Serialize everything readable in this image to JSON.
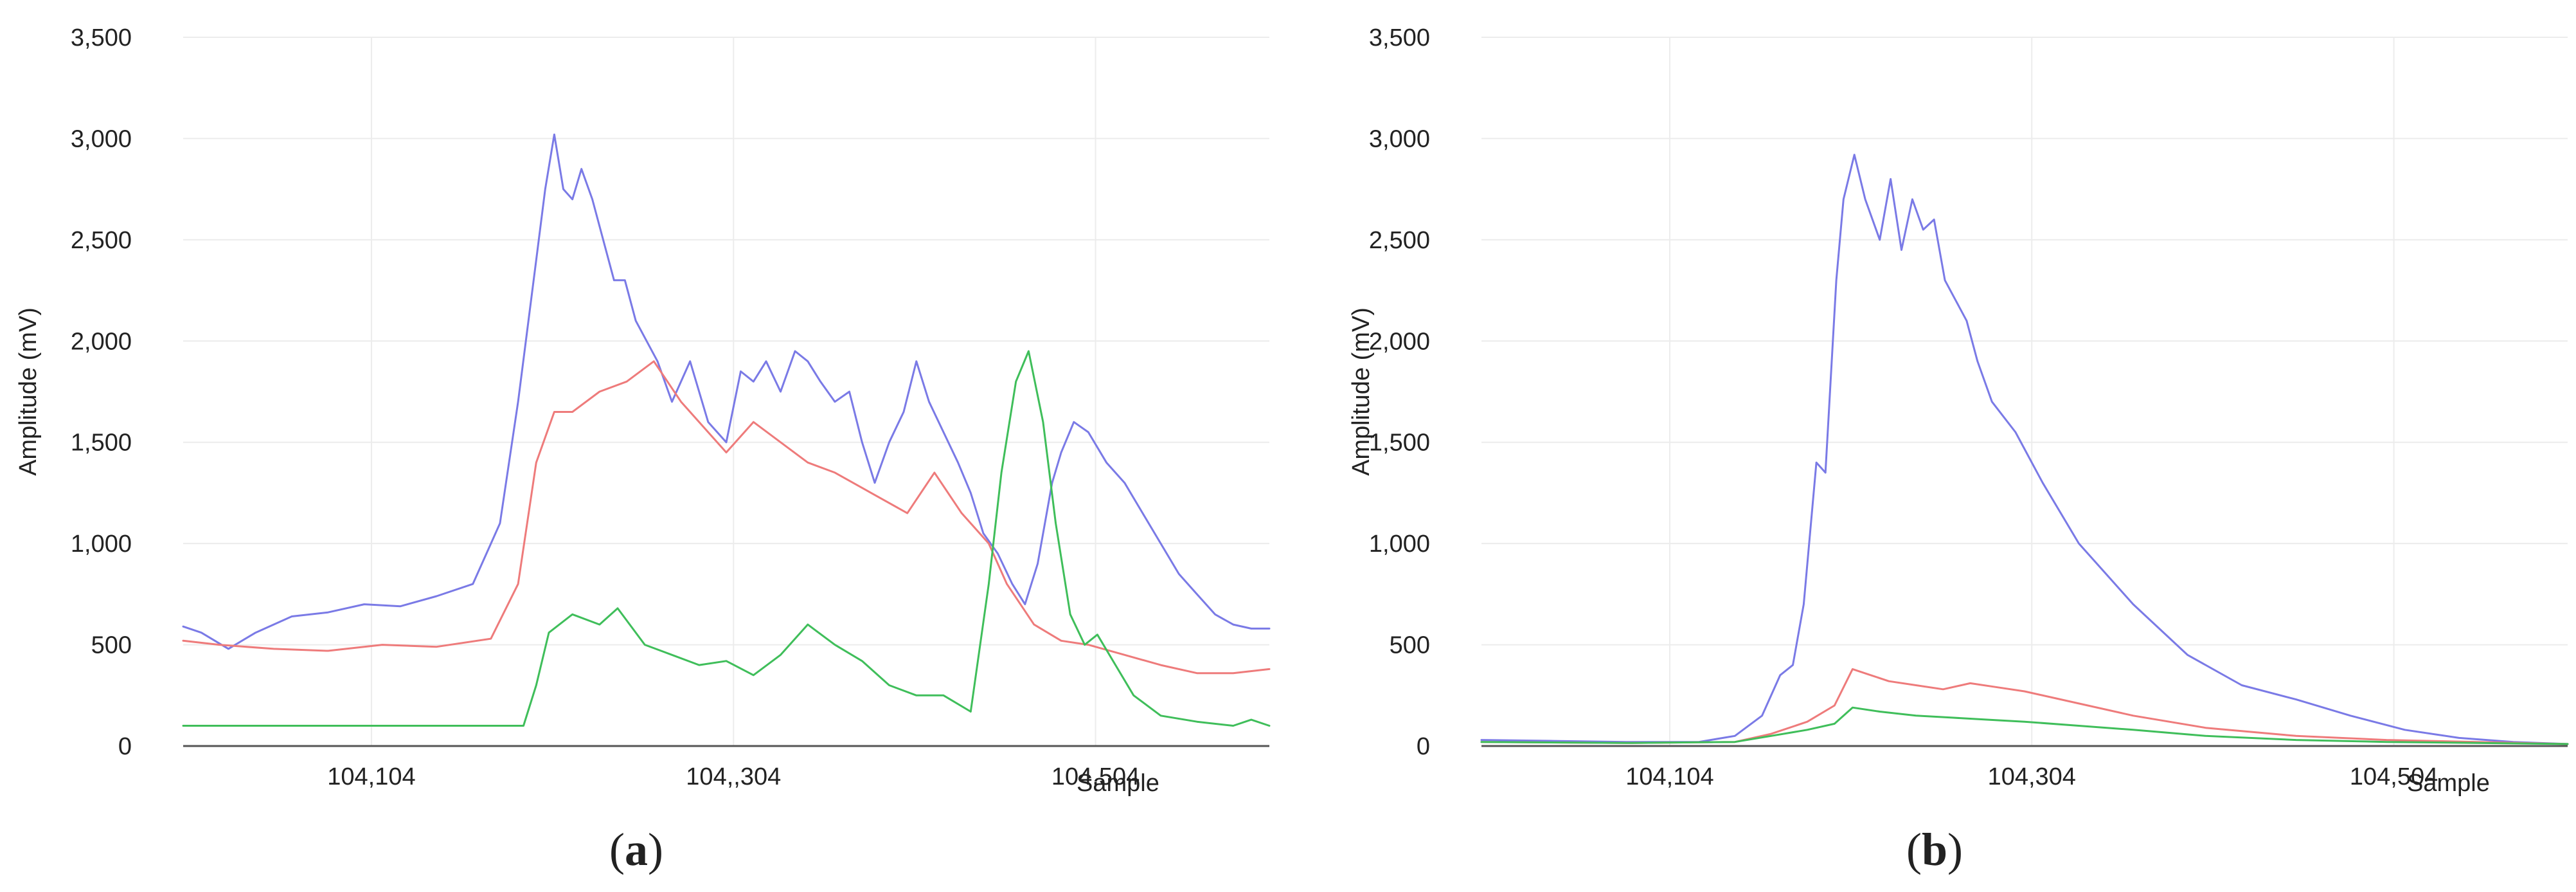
{
  "chart_data": [
    {
      "type": "line",
      "panel_label": "a",
      "ylabel": "Amplitude (mV)",
      "xlabel": "Sample",
      "ylim": [
        0,
        3500
      ],
      "yticks": [
        0,
        500,
        1000,
        1500,
        2000,
        2500,
        3000,
        3500
      ],
      "ytick_labels": [
        "0",
        "500",
        "1,000",
        "1,500",
        "2,000",
        "2,500",
        "3,000",
        "3,500"
      ],
      "xlim": [
        104000,
        104600
      ],
      "xticks": [
        104104,
        104304,
        104504
      ],
      "xtick_labels": [
        "104,104",
        "104,,304",
        "104,504"
      ],
      "grid": true,
      "series": [
        {
          "color": "#7a7ae6",
          "x": [
            104000,
            104010,
            104025,
            104040,
            104060,
            104080,
            104100,
            104120,
            104140,
            104160,
            104175,
            104185,
            104190,
            104195,
            104200,
            104205,
            104210,
            104215,
            104220,
            104226,
            104232,
            104238,
            104244,
            104250,
            104256,
            104262,
            104270,
            104280,
            104290,
            104300,
            104308,
            104315,
            104322,
            104330,
            104338,
            104345,
            104352,
            104360,
            104368,
            104375,
            104382,
            104390,
            104398,
            104405,
            104412,
            104420,
            104428,
            104435,
            104442,
            104450,
            104458,
            104465,
            104472,
            104480,
            104485,
            104492,
            104500,
            104510,
            104520,
            104530,
            104540,
            104550,
            104560,
            104570,
            104580,
            104590,
            104600
          ],
          "y": [
            590,
            560,
            480,
            560,
            640,
            660,
            700,
            690,
            740,
            800,
            1100,
            1700,
            2050,
            2400,
            2750,
            3020,
            2750,
            2700,
            2850,
            2700,
            2500,
            2300,
            2300,
            2100,
            2000,
            1900,
            1700,
            1900,
            1600,
            1500,
            1850,
            1800,
            1900,
            1750,
            1950,
            1900,
            1800,
            1700,
            1750,
            1500,
            1300,
            1500,
            1650,
            1900,
            1700,
            1550,
            1400,
            1250,
            1050,
            950,
            800,
            700,
            900,
            1300,
            1450,
            1600,
            1550,
            1400,
            1300,
            1150,
            1000,
            850,
            750,
            650,
            600,
            580,
            580
          ]
        },
        {
          "color": "#ee7b7b",
          "x": [
            104000,
            104020,
            104050,
            104080,
            104110,
            104140,
            104170,
            104185,
            104195,
            104205,
            104215,
            104230,
            104245,
            104260,
            104275,
            104290,
            104300,
            104315,
            104330,
            104345,
            104360,
            104380,
            104400,
            104415,
            104430,
            104445,
            104455,
            104470,
            104485,
            104500,
            104520,
            104540,
            104560,
            104580,
            104600
          ],
          "y": [
            520,
            500,
            480,
            470,
            500,
            490,
            530,
            800,
            1400,
            1650,
            1650,
            1750,
            1800,
            1900,
            1700,
            1550,
            1450,
            1600,
            1500,
            1400,
            1350,
            1250,
            1150,
            1350,
            1150,
            1000,
            800,
            600,
            520,
            500,
            450,
            400,
            360,
            360,
            380
          ]
        },
        {
          "color": "#3fbe5a",
          "x": [
            104000,
            104050,
            104100,
            104150,
            104188,
            104195,
            104202,
            104215,
            104230,
            104240,
            104255,
            104270,
            104285,
            104300,
            104315,
            104330,
            104345,
            104360,
            104375,
            104390,
            104405,
            104420,
            104435,
            104445,
            104452,
            104460,
            104467,
            104475,
            104482,
            104490,
            104498,
            104505,
            104515,
            104525,
            104540,
            104560,
            104580,
            104590,
            104600
          ],
          "y": [
            100,
            100,
            100,
            100,
            100,
            300,
            560,
            650,
            600,
            680,
            500,
            450,
            400,
            420,
            350,
            450,
            600,
            500,
            420,
            300,
            250,
            250,
            170,
            800,
            1350,
            1800,
            1950,
            1600,
            1100,
            650,
            500,
            550,
            400,
            250,
            150,
            120,
            100,
            130,
            100
          ]
        }
      ]
    },
    {
      "type": "line",
      "panel_label": "b",
      "ylabel": "Amplitude (mV)",
      "xlabel": "Sample",
      "ylim": [
        0,
        3500
      ],
      "yticks": [
        0,
        500,
        1000,
        1500,
        2000,
        2500,
        3000,
        3500
      ],
      "ytick_labels": [
        "0",
        "500",
        "1,000",
        "1,500",
        "2,000",
        "2,500",
        "3,000",
        "3,500"
      ],
      "xlim": [
        104000,
        104600
      ],
      "xticks": [
        104104,
        104304,
        104504
      ],
      "xtick_labels": [
        "104,104",
        "104,304",
        "104,504"
      ],
      "grid": true,
      "series": [
        {
          "color": "#7a7ae6",
          "x": [
            104000,
            104040,
            104080,
            104120,
            104140,
            104155,
            104165,
            104172,
            104178,
            104185,
            104190,
            104196,
            104200,
            104206,
            104212,
            104220,
            104226,
            104232,
            104238,
            104244,
            104250,
            104256,
            104262,
            104268,
            104274,
            104282,
            104295,
            104310,
            104330,
            104360,
            104390,
            104420,
            104450,
            104480,
            104510,
            104540,
            104570,
            104600
          ],
          "y": [
            30,
            25,
            20,
            20,
            50,
            150,
            350,
            400,
            700,
            1400,
            1350,
            2300,
            2700,
            2920,
            2700,
            2500,
            2800,
            2450,
            2700,
            2550,
            2600,
            2300,
            2200,
            2100,
            1900,
            1700,
            1550,
            1300,
            1000,
            700,
            450,
            300,
            230,
            150,
            80,
            40,
            20,
            10
          ]
        },
        {
          "color": "#ee7b7b",
          "x": [
            104000,
            104080,
            104140,
            104160,
            104180,
            104195,
            104205,
            104215,
            104225,
            104240,
            104255,
            104270,
            104285,
            104300,
            104330,
            104360,
            104400,
            104450,
            104500,
            104550,
            104600
          ],
          "y": [
            20,
            15,
            20,
            60,
            120,
            200,
            380,
            350,
            320,
            300,
            280,
            310,
            290,
            270,
            210,
            150,
            90,
            50,
            30,
            20,
            10
          ]
        },
        {
          "color": "#3fbe5a",
          "x": [
            104000,
            104080,
            104140,
            104160,
            104180,
            104195,
            104205,
            104220,
            104240,
            104260,
            104280,
            104300,
            104330,
            104360,
            104400,
            104450,
            104500,
            104550,
            104600
          ],
          "y": [
            20,
            15,
            20,
            50,
            80,
            110,
            190,
            170,
            150,
            140,
            130,
            120,
            100,
            80,
            50,
            30,
            20,
            15,
            10
          ]
        }
      ]
    }
  ]
}
